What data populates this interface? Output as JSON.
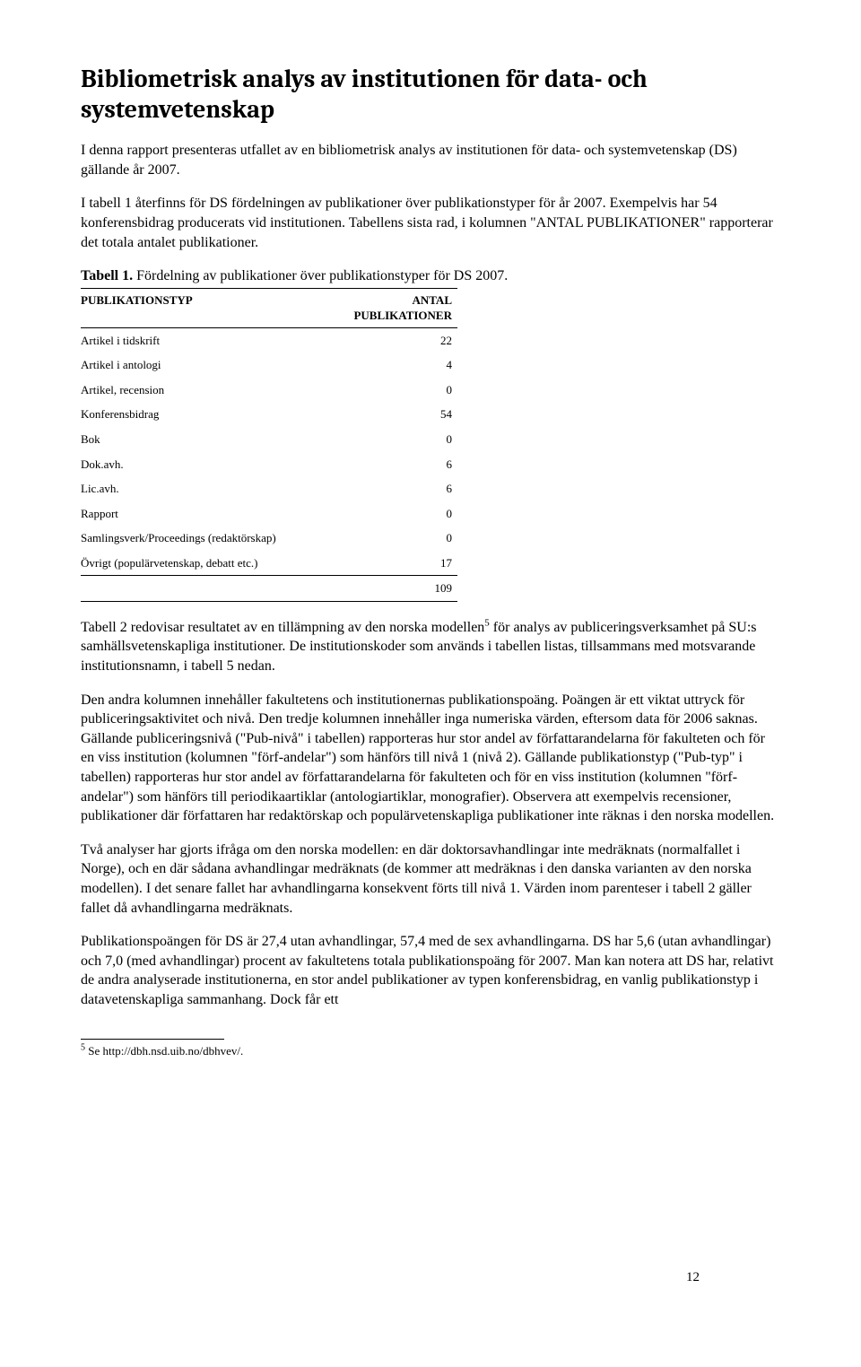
{
  "heading": "Bibliometrisk analys av institutionen för data- och systemvetenskap",
  "para1": "I denna rapport presenteras utfallet av en bibliometrisk analys av institutionen för data- och systemvetenskap (DS) gällande år 2007.",
  "para2": "I tabell 1 återfinns för DS fördelningen av publikationer över publikationstyper för år 2007. Exempelvis har 54 konferensbidrag producerats vid institutionen. Tabellens sista rad, i kolumnen \"ANTAL PUBLIKATIONER\" rapporterar det totala antalet publikationer.",
  "caption": {
    "label": "Tabell 1.",
    "text": " Fördelning av publikationer över publikationstyper för DS 2007."
  },
  "table": {
    "col1": "PUBLIKATIONSTYP",
    "col2a": "ANTAL",
    "col2b": "PUBLIKATIONER",
    "rows": [
      {
        "label": "Artikel i tidskrift",
        "value": "22"
      },
      {
        "label": "Artikel i antologi",
        "value": "4"
      },
      {
        "label": "Artikel, recension",
        "value": "0"
      },
      {
        "label": "Konferensbidrag",
        "value": "54"
      },
      {
        "label": "Bok",
        "value": "0"
      },
      {
        "label": "Dok.avh.",
        "value": "6"
      },
      {
        "label": "Lic.avh.",
        "value": "6"
      },
      {
        "label": "Rapport",
        "value": "0"
      },
      {
        "label": "Samlingsverk/Proceedings (redaktörskap)",
        "value": "0"
      },
      {
        "label": "Övrigt (populärvetenskap, debatt etc.)",
        "value": "17"
      }
    ],
    "total": "109"
  },
  "para3a": "Tabell 2 redovisar resultatet av en tillämpning av den norska modellen",
  "para3_fn": "5",
  "para3b": " för analys av publiceringsverksamhet på SU:s samhällsvetenskapliga institutioner. De institutionskoder som används i tabellen listas, tillsammans med motsvarande institutionsnamn, i tabell 5 nedan.",
  "para4": "Den andra kolumnen innehåller fakultetens och institutionernas publikationspoäng. Poängen är ett viktat uttryck för publiceringsaktivitet och nivå. Den tredje kolumnen innehåller inga numeriska värden, eftersom data för 2006 saknas. Gällande publiceringsnivå (\"Pub-nivå\" i tabellen) rapporteras hur stor andel av författarandelarna för fakulteten och för en viss institution (kolumnen \"förf-andelar\") som hänförs till nivå 1 (nivå 2). Gällande publikationstyp (\"Pub-typ\" i tabellen) rapporteras hur stor andel av författarandelarna för fakulteten och för en viss institution (kolumnen \"förf-andelar\") som hänförs till periodikaartiklar (antologiartiklar, monografier). Observera att exempelvis recensioner, publikationer där författaren har redaktörskap och populärvetenskapliga publikationer inte räknas i den norska modellen.",
  "para5": "Två analyser har gjorts ifråga om den norska modellen: en där doktorsavhandlingar inte medräknats (normalfallet i Norge), och en där sådana avhandlingar medräknats (de kommer att medräknas i den danska varianten av den norska modellen). I det senare fallet har avhandlingarna konsekvent förts till nivå 1. Värden inom parenteser i tabell 2 gäller fallet då avhandlingarna medräknats.",
  "para6": "Publikationspoängen för DS är 27,4 utan avhandlingar, 57,4 med de sex avhandlingarna. DS har 5,6 (utan avhandlingar) och 7,0 (med avhandlingar) procent av fakultetens totala publikationspoäng för 2007. Man kan notera att DS har, relativt de andra analyserade institutionerna, en stor andel publikationer av typen konferensbidrag, en vanlig publikationstyp i datavetenskapliga sammanhang. Dock får ett",
  "footnote": {
    "num": "5",
    "text": " Se http://dbh.nsd.uib.no/dbhvev/."
  },
  "pagenum": "12"
}
